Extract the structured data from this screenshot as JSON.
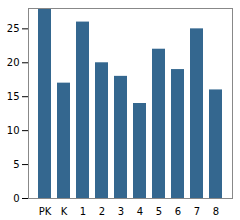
{
  "chart_data": {
    "type": "bar",
    "categories": [
      "PK",
      "K",
      "1",
      "2",
      "3",
      "4",
      "5",
      "6",
      "7",
      "8"
    ],
    "values": [
      28,
      17,
      26,
      20,
      18,
      14,
      22,
      19,
      25,
      16
    ],
    "color": "#34678f",
    "ylim": [
      0,
      28
    ],
    "yticks": [
      0,
      5,
      10,
      15,
      20,
      25
    ],
    "grid": false
  }
}
